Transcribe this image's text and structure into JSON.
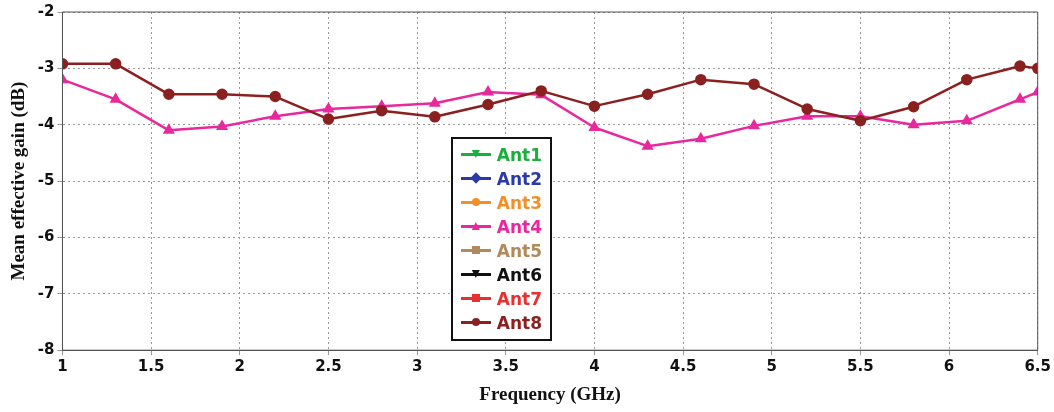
{
  "chart_data": {
    "type": "line",
    "xlabel": "Frequency (GHz)",
    "ylabel": "Mean effective gain (dB)",
    "x": [
      1,
      1.3,
      1.6,
      1.9,
      2.2,
      2.5,
      2.8,
      3.1,
      3.4,
      3.7,
      4.0,
      4.3,
      4.6,
      4.9,
      5.2,
      5.5,
      5.8,
      6.1,
      6.4,
      6.5
    ],
    "series": [
      {
        "name": "Ant1",
        "color": "#1aae3a",
        "marker": "triangle-down",
        "values": [
          null,
          null,
          null,
          null,
          null,
          null,
          null,
          null,
          null,
          null,
          null,
          null,
          null,
          null,
          null,
          null,
          null,
          null,
          null,
          null
        ]
      },
      {
        "name": "Ant2",
        "color": "#2b3aa8",
        "marker": "diamond",
        "values": [
          null,
          null,
          null,
          null,
          null,
          null,
          null,
          null,
          null,
          null,
          null,
          null,
          null,
          null,
          null,
          null,
          null,
          null,
          null,
          null
        ]
      },
      {
        "name": "Ant3",
        "color": "#f0902a",
        "marker": "circle",
        "values": [
          null,
          null,
          null,
          null,
          null,
          null,
          null,
          null,
          null,
          null,
          null,
          null,
          null,
          null,
          null,
          null,
          null,
          null,
          null,
          null
        ]
      },
      {
        "name": "Ant4",
        "color": "#e8289c",
        "marker": "triangle",
        "values": [
          -3.2,
          -3.55,
          -4.1,
          -4.03,
          -3.85,
          -3.72,
          -3.67,
          -3.62,
          -3.42,
          -3.47,
          -4.05,
          -4.38,
          -4.25,
          -4.02,
          -3.85,
          -3.85,
          -4.0,
          -3.93,
          -3.55,
          -3.42
        ]
      },
      {
        "name": "Ant5",
        "color": "#b08a5a",
        "marker": "square",
        "values": [
          null,
          null,
          null,
          null,
          null,
          null,
          null,
          null,
          null,
          null,
          null,
          null,
          null,
          null,
          null,
          null,
          null,
          null,
          null,
          null
        ]
      },
      {
        "name": "Ant6",
        "color": "#111111",
        "marker": "triangle-down",
        "values": [
          null,
          null,
          null,
          null,
          null,
          null,
          null,
          null,
          null,
          null,
          null,
          null,
          null,
          null,
          null,
          null,
          null,
          null,
          null,
          null
        ]
      },
      {
        "name": "Ant7",
        "color": "#e83030",
        "marker": "square",
        "values": [
          null,
          null,
          null,
          null,
          null,
          null,
          null,
          null,
          null,
          null,
          null,
          null,
          null,
          null,
          null,
          null,
          null,
          null,
          null,
          null
        ]
      },
      {
        "name": "Ant8",
        "color": "#8b2020",
        "marker": "circle",
        "values": [
          -2.92,
          -2.92,
          -3.46,
          -3.46,
          -3.5,
          -3.9,
          -3.75,
          -3.86,
          -3.64,
          -3.4,
          -3.67,
          -3.46,
          -3.2,
          -3.28,
          -3.72,
          -3.93,
          -3.68,
          -3.2,
          -2.96,
          -3.0
        ]
      }
    ],
    "xlim": [
      1,
      6.5
    ],
    "xticks": [
      1,
      1.5,
      2,
      2.5,
      3,
      3.5,
      4,
      4.5,
      5,
      5.5,
      6,
      6.5
    ],
    "ylim": [
      -8,
      -2
    ],
    "yticks": [
      -8,
      -7,
      -6,
      -5,
      -4,
      -3,
      -2
    ],
    "grid": true,
    "legend": "center",
    "line_style": "solid"
  }
}
